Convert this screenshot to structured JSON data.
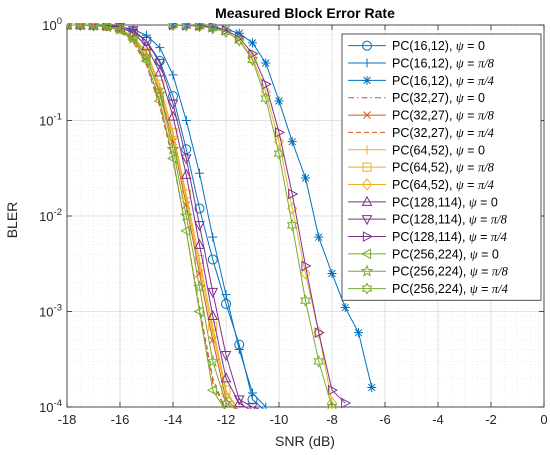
{
  "chart_data": {
    "type": "line",
    "title": "Measured Block Error Rate",
    "xlabel": "SNR (dB)",
    "ylabel": "BLER",
    "xlim": [
      -18,
      0
    ],
    "ylim": [
      0.0001,
      1
    ],
    "yscale": "log",
    "grid": true,
    "legend_position": "top-right",
    "x_ticks": [
      -18,
      -16,
      -14,
      -12,
      -10,
      -8,
      -6,
      -4,
      -2,
      0
    ],
    "x_tick_labels": [
      "-18",
      "-16",
      "-14",
      "-12",
      "-10",
      "-8",
      "-6",
      "-4",
      "-2",
      "0"
    ],
    "y_ticks": [
      {
        "value": 1,
        "base": "10",
        "exp": "0"
      },
      {
        "value": 0.1,
        "base": "10",
        "exp": "-1"
      },
      {
        "value": 0.01,
        "base": "10",
        "exp": "-2"
      },
      {
        "value": 0.001,
        "base": "10",
        "exp": "-3"
      },
      {
        "value": 0.0001,
        "base": "10",
        "exp": "-4"
      }
    ],
    "series": [
      {
        "name": "PC(16,12), ψ = 0",
        "code": "PC(16,12), ",
        "phase": "0",
        "color": "#0072BD",
        "marker": "circle",
        "dash": "solid",
        "x": [
          -18,
          -17.5,
          -17,
          -16.5,
          -16,
          -15.5,
          -15,
          -14.5,
          -14,
          -13.5,
          -13,
          -12.5,
          -12,
          -11.5,
          -11,
          -10.5
        ],
        "y": [
          1,
          1,
          0.99,
          0.98,
          0.93,
          0.85,
          0.68,
          0.42,
          0.18,
          0.05,
          0.012,
          0.0035,
          0.0012,
          0.00045,
          0.00012,
          9e-05
        ]
      },
      {
        "name": "PC(16,12), ψ = π/8",
        "code": "PC(16,12), ",
        "phase": "π/8",
        "color": "#0072BD",
        "marker": "plus",
        "dash": "solid",
        "x": [
          -18,
          -17.5,
          -17,
          -16.5,
          -16,
          -15.5,
          -15,
          -14.5,
          -14,
          -13.5,
          -13,
          -12.5,
          -12,
          -11.5,
          -11,
          -10.5
        ],
        "y": [
          1,
          1,
          1,
          0.99,
          0.96,
          0.9,
          0.78,
          0.58,
          0.3,
          0.1,
          0.028,
          0.006,
          0.0015,
          0.0004,
          0.00014,
          0.0001
        ]
      },
      {
        "name": "PC(16,12), ψ = π/4",
        "code": "PC(16,12), ",
        "phase": "π/4",
        "color": "#0072BD",
        "marker": "asterisk",
        "dash": "solid",
        "x": [
          -14,
          -13.5,
          -13,
          -12.5,
          -12,
          -11.5,
          -11,
          -10.5,
          -10,
          -9.5,
          -9,
          -8.5,
          -8,
          -7.5,
          -7,
          -6.5
        ],
        "y": [
          1,
          0.99,
          0.98,
          0.95,
          0.9,
          0.82,
          0.65,
          0.4,
          0.16,
          0.06,
          0.025,
          0.006,
          0.0025,
          0.0011,
          0.0006,
          0.00016
        ]
      },
      {
        "name": "PC(32,27), ψ = 0",
        "code": "PC(32,27), ",
        "phase": "0",
        "color": "#D95319",
        "marker": "none",
        "dash": "dashdot",
        "x": [
          -18,
          -17.5,
          -17,
          -16.5,
          -16,
          -15.5,
          -15,
          -14.5,
          -14,
          -13.5,
          -13,
          -12.5,
          -12
        ],
        "y": [
          1,
          1,
          0.99,
          0.96,
          0.88,
          0.68,
          0.4,
          0.15,
          0.04,
          0.007,
          0.001,
          0.00018,
          9e-05
        ]
      },
      {
        "name": "PC(32,27), ψ = π/8",
        "code": "PC(32,27), ",
        "phase": "π/8",
        "color": "#D95319",
        "marker": "cross",
        "dash": "solid",
        "x": [
          -18,
          -17.5,
          -17,
          -16.5,
          -16,
          -15.5,
          -15,
          -14.5,
          -14,
          -13.5,
          -13,
          -12.5,
          -12,
          -11.5
        ],
        "y": [
          1,
          1,
          0.99,
          0.97,
          0.9,
          0.72,
          0.46,
          0.2,
          0.06,
          0.013,
          0.0025,
          0.0005,
          0.00012,
          9e-05
        ]
      },
      {
        "name": "PC(32,27), ψ = π/4",
        "code": "PC(32,27), ",
        "phase": "π/4",
        "color": "#D95319",
        "marker": "none",
        "dash": "dashed",
        "x": [
          -18,
          -17.5,
          -17,
          -16.5,
          -16,
          -15.5,
          -15,
          -14.5,
          -14,
          -13.5,
          -13,
          -12.5,
          -12
        ],
        "y": [
          1,
          1,
          0.99,
          0.96,
          0.87,
          0.66,
          0.38,
          0.14,
          0.038,
          0.007,
          0.0011,
          0.0002,
          9e-05
        ]
      },
      {
        "name": "PC(64,52), ψ = 0",
        "code": "PC(64,52), ",
        "phase": "0",
        "color": "#EDB120",
        "marker": "vbar",
        "dash": "solid",
        "x": [
          -18,
          -17.5,
          -17,
          -16.5,
          -16,
          -15.5,
          -15,
          -14.5,
          -14,
          -13.5,
          -13,
          -12.5,
          -12,
          -11.5
        ],
        "y": [
          1,
          1,
          0.99,
          0.97,
          0.9,
          0.74,
          0.5,
          0.22,
          0.07,
          0.015,
          0.003,
          0.0006,
          0.00014,
          9e-05
        ]
      },
      {
        "name": "PC(64,52), ψ = π/8",
        "code": "PC(64,52), ",
        "phase": "π/8",
        "color": "#EDB120",
        "marker": "square",
        "dash": "solid",
        "x": [
          -18,
          -17.5,
          -17,
          -16.5,
          -16,
          -15.5,
          -15,
          -14.5,
          -14,
          -13.5,
          -13,
          -12.5,
          -12,
          -11.5
        ],
        "y": [
          1,
          1,
          0.99,
          0.97,
          0.91,
          0.76,
          0.52,
          0.24,
          0.075,
          0.017,
          0.0035,
          0.0007,
          0.00015,
          9e-05
        ]
      },
      {
        "name": "PC(64,52), ψ = π/4",
        "code": "PC(64,52), ",
        "phase": "π/4",
        "color": "#EDB120",
        "marker": "diamond",
        "dash": "solid",
        "x": [
          -14,
          -13.5,
          -13,
          -12.5,
          -12,
          -11.5,
          -11,
          -10.5,
          -10,
          -9.5,
          -9,
          -8.5,
          -8
        ],
        "y": [
          1,
          0.99,
          0.97,
          0.93,
          0.85,
          0.7,
          0.45,
          0.2,
          0.06,
          0.012,
          0.0025,
          0.0006,
          0.00011
        ]
      },
      {
        "name": "PC(128,114), ψ = 0",
        "code": "PC(128,114), ",
        "phase": "0",
        "color": "#7E2F8E",
        "marker": "triangle-up",
        "dash": "solid",
        "x": [
          -18,
          -17.5,
          -17,
          -16.5,
          -16,
          -15.5,
          -15,
          -14.5,
          -14,
          -13.5,
          -13,
          -12.5,
          -12,
          -11.5,
          -11
        ],
        "y": [
          1,
          1,
          0.99,
          0.98,
          0.94,
          0.83,
          0.6,
          0.32,
          0.11,
          0.027,
          0.005,
          0.0009,
          0.0002,
          0.00011,
          9e-05
        ]
      },
      {
        "name": "PC(128,114), ψ = π/8",
        "code": "PC(128,114), ",
        "phase": "π/8",
        "color": "#7E2F8E",
        "marker": "triangle-down",
        "dash": "solid",
        "x": [
          -18,
          -17.5,
          -17,
          -16.5,
          -16,
          -15.5,
          -15,
          -14.5,
          -14,
          -13.5,
          -13,
          -12.5,
          -12,
          -11.5,
          -11,
          -10.5
        ],
        "y": [
          1,
          1,
          1,
          0.99,
          0.96,
          0.88,
          0.68,
          0.4,
          0.15,
          0.04,
          0.008,
          0.0016,
          0.00035,
          0.00012,
          0.0001,
          9e-05
        ]
      },
      {
        "name": "PC(128,114), ψ = π/4",
        "code": "PC(128,114), ",
        "phase": "π/4",
        "color": "#7E2F8E",
        "marker": "triangle-right",
        "dash": "solid",
        "x": [
          -14,
          -13.5,
          -13,
          -12.5,
          -12,
          -11.5,
          -11,
          -10.5,
          -10,
          -9.5,
          -9,
          -8.5,
          -8,
          -7.5
        ],
        "y": [
          1,
          0.99,
          0.98,
          0.95,
          0.88,
          0.74,
          0.5,
          0.24,
          0.075,
          0.017,
          0.003,
          0.0006,
          0.00015,
          0.00011
        ]
      },
      {
        "name": "PC(256,224), ψ = 0",
        "code": "PC(256,224), ",
        "phase": "0",
        "color": "#77AC30",
        "marker": "triangle-left",
        "dash": "solid",
        "x": [
          -18,
          -17.5,
          -17,
          -16.5,
          -16,
          -15.5,
          -15,
          -14.5,
          -14,
          -13.5,
          -13,
          -12.5,
          -12
        ],
        "y": [
          1,
          1,
          0.99,
          0.96,
          0.88,
          0.7,
          0.42,
          0.16,
          0.04,
          0.007,
          0.001,
          0.00015,
          9e-05
        ]
      },
      {
        "name": "PC(256,224), ψ = π/8",
        "code": "PC(256,224), ",
        "phase": "π/8",
        "color": "#77AC30",
        "marker": "star",
        "dash": "solid",
        "x": [
          -18,
          -17.5,
          -17,
          -16.5,
          -16,
          -15.5,
          -15,
          -14.5,
          -14,
          -13.5,
          -13,
          -12.5,
          -12,
          -11.5
        ],
        "y": [
          1,
          1,
          0.99,
          0.97,
          0.9,
          0.73,
          0.46,
          0.19,
          0.05,
          0.01,
          0.0018,
          0.0003,
          0.00011,
          9e-05
        ]
      },
      {
        "name": "PC(256,224), ψ = π/4",
        "code": "PC(256,224), ",
        "phase": "π/4",
        "color": "#77AC30",
        "marker": "hexagram",
        "dash": "solid",
        "x": [
          -14,
          -13.5,
          -13,
          -12.5,
          -12,
          -11.5,
          -11,
          -10.5,
          -10,
          -9.5,
          -9,
          -8.5,
          -8
        ],
        "y": [
          1,
          0.99,
          0.97,
          0.93,
          0.85,
          0.69,
          0.43,
          0.17,
          0.045,
          0.008,
          0.0013,
          0.0003,
          0.0001
        ]
      }
    ]
  },
  "legend": {
    "psi_symbol": "ψ",
    "equals": " = "
  }
}
